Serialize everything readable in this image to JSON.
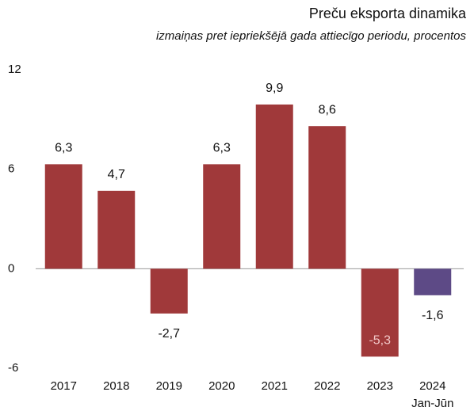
{
  "chart_data": {
    "type": "bar",
    "title": "Preču eksporta dinamika",
    "subtitle": "izmaiņas pret iepriekšējā gada attiecīgo periodu, procentos",
    "categories": [
      "2017",
      "2018",
      "2019",
      "2020",
      "2021",
      "2022",
      "2023",
      "2024"
    ],
    "period_note": "Jan-Jūn",
    "values": [
      6.3,
      4.7,
      -2.7,
      6.3,
      9.9,
      8.6,
      -5.3,
      -1.6
    ],
    "value_labels": [
      "6,3",
      "4,7",
      "-2,7",
      "6,3",
      "9,9",
      "8,6",
      "-5,3",
      "-1,6"
    ],
    "colors": [
      "#a0393a",
      "#a0393a",
      "#a0393a",
      "#a0393a",
      "#a0393a",
      "#a0393a",
      "#a0393a",
      "#5d4a86"
    ],
    "ylim": [
      -6,
      12
    ],
    "yticks": [
      -6,
      0,
      6,
      12
    ],
    "grid": false
  }
}
